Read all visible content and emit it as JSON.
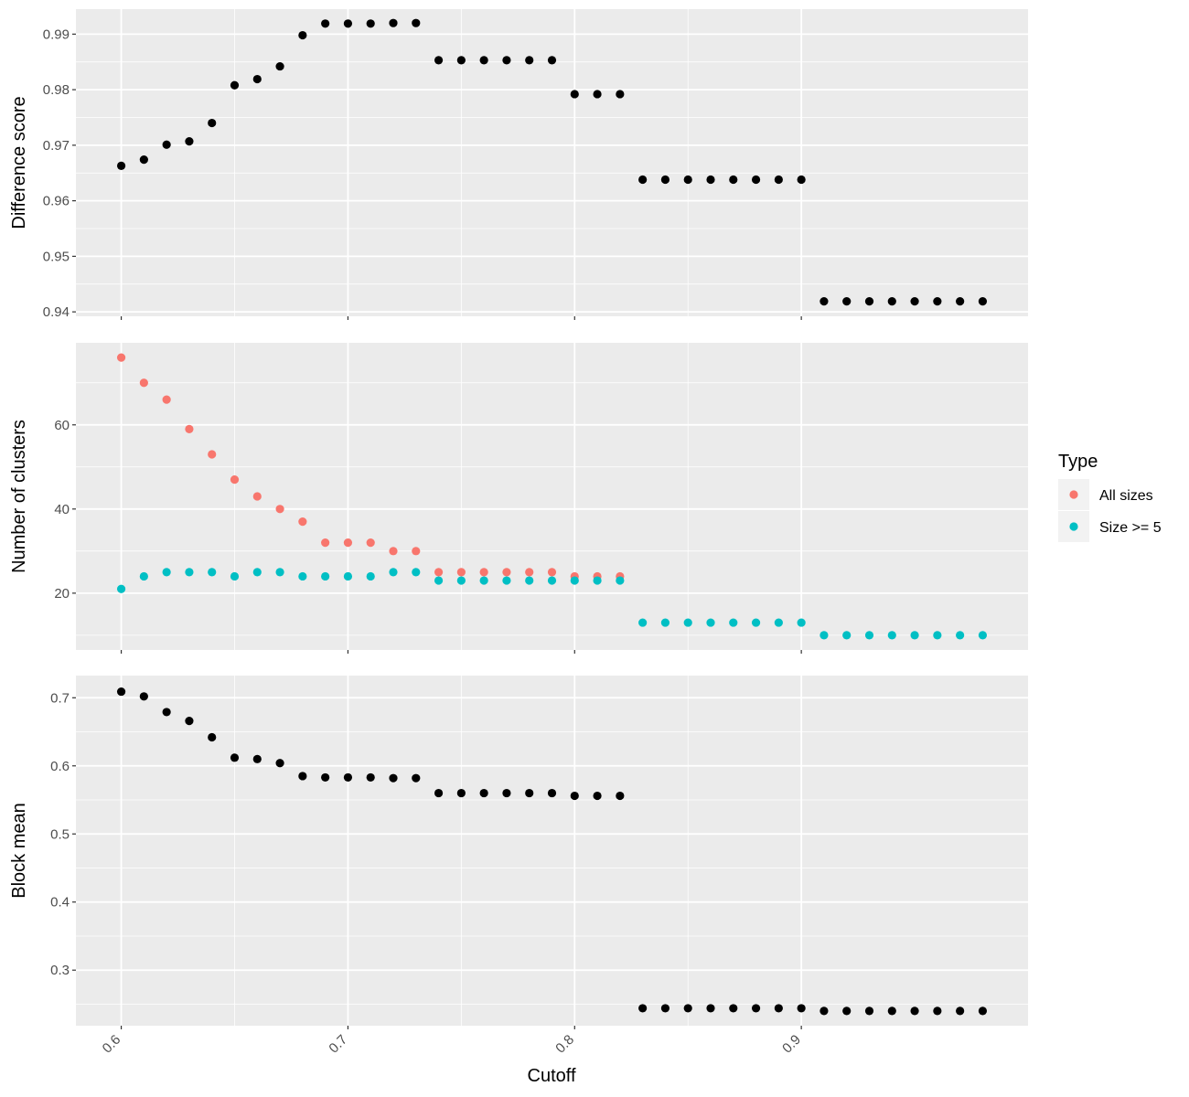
{
  "chart_data": {
    "type": "scatter",
    "x": [
      0.6,
      0.61,
      0.62,
      0.63,
      0.64,
      0.65,
      0.66,
      0.67,
      0.68,
      0.69,
      0.7,
      0.71,
      0.72,
      0.73,
      0.74,
      0.75,
      0.76,
      0.77,
      0.78,
      0.79,
      0.8,
      0.81,
      0.82,
      0.83,
      0.84,
      0.85,
      0.86,
      0.87,
      0.88,
      0.89,
      0.9,
      0.91,
      0.92,
      0.93,
      0.94,
      0.95,
      0.96,
      0.97,
      0.98
    ],
    "xlabel": "Cutoff",
    "xlim": [
      0.58,
      1.0
    ],
    "x_ticks": [
      "0.6",
      "0.7",
      "0.8",
      "0.9"
    ],
    "grid": true,
    "legend": {
      "title": "Type",
      "placement": "right",
      "entries": [
        {
          "label": "All sizes",
          "color": "#F8766D"
        },
        {
          "label": "Size >= 5",
          "color": "#00BFC4"
        }
      ]
    },
    "panels": [
      {
        "ylabel": "Difference score",
        "ylim": [
          0.9392,
          0.9945
        ],
        "y_ticks": [
          "0.94",
          "0.95",
          "0.96",
          "0.97",
          "0.98",
          "0.99"
        ],
        "series": [
          {
            "color": "#000000",
            "values": [
              0.9663,
              0.9674,
              0.9701,
              0.9707,
              0.974,
              0.9808,
              0.9819,
              0.9842,
              0.9898,
              0.9919,
              0.9919,
              0.9919,
              0.992,
              0.992,
              0.9853,
              0.9853,
              0.9853,
              0.9853,
              0.9853,
              0.9853,
              0.9792,
              0.9792,
              0.9792,
              0.9638,
              0.9638,
              0.9638,
              0.9638,
              0.9638,
              0.9638,
              0.9638,
              0.9638,
              0.9419,
              0.9419,
              0.9419,
              0.9419,
              0.9419,
              0.9419,
              0.9419,
              0.9419
            ]
          }
        ]
      },
      {
        "ylabel": "Number of clusters",
        "ylim": [
          6.5,
          79.5
        ],
        "y_ticks": [
          "20",
          "40",
          "60"
        ],
        "series": [
          {
            "name": "All sizes",
            "color": "#F8766D",
            "values": [
              76,
              70,
              66,
              59,
              53,
              47,
              43,
              40,
              37,
              32,
              32,
              32,
              30,
              30,
              25,
              25,
              25,
              25,
              25,
              25,
              24,
              24,
              24,
              null,
              null,
              null,
              null,
              null,
              null,
              null,
              null,
              null,
              null,
              null,
              null,
              null,
              null,
              null,
              null
            ]
          },
          {
            "name": "Size >= 5",
            "color": "#00BFC4",
            "values": [
              21,
              24,
              25,
              25,
              25,
              24,
              25,
              25,
              24,
              24,
              24,
              24,
              25,
              25,
              23,
              23,
              23,
              23,
              23,
              23,
              23,
              23,
              23,
              13,
              13,
              13,
              13,
              13,
              13,
              13,
              13,
              10,
              10,
              10,
              10,
              10,
              10,
              10,
              10
            ]
          }
        ]
      },
      {
        "ylabel": "Block mean",
        "ylim": [
          0.2184,
          0.7326
        ],
        "y_ticks": [
          "0.3",
          "0.4",
          "0.5",
          "0.6",
          "0.7"
        ],
        "series": [
          {
            "color": "#000000",
            "values": [
              0.709,
              0.702,
              0.679,
              0.666,
              0.642,
              0.612,
              0.61,
              0.604,
              0.585,
              0.583,
              0.583,
              0.583,
              0.582,
              0.582,
              0.56,
              0.56,
              0.56,
              0.56,
              0.56,
              0.56,
              0.556,
              0.556,
              0.556,
              0.244,
              0.244,
              0.244,
              0.244,
              0.244,
              0.244,
              0.244,
              0.244,
              0.24,
              0.24,
              0.24,
              0.24,
              0.24,
              0.24,
              0.24,
              0.24
            ]
          }
        ]
      }
    ]
  }
}
